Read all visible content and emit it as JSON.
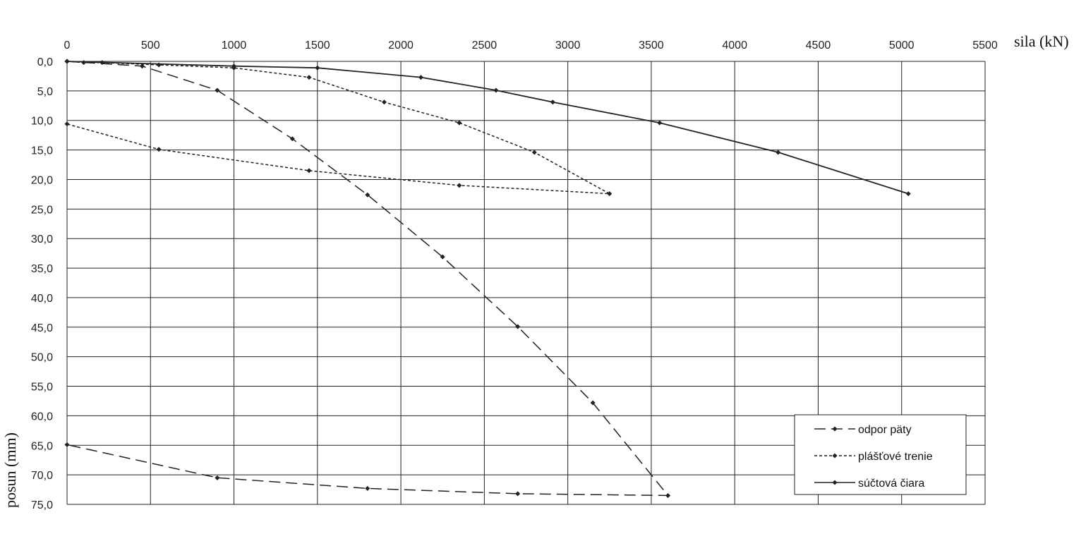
{
  "chart_data": {
    "type": "line",
    "xlabel": "sila (kN)",
    "ylabel": "posun (mm)",
    "xlim": [
      0,
      5500
    ],
    "ylim": [
      0,
      75
    ],
    "x_ticks": [
      0,
      500,
      1000,
      1500,
      2000,
      2500,
      3000,
      3500,
      4000,
      4500,
      5000,
      5500
    ],
    "x_tick_labels": [
      "0",
      "500",
      "1000",
      "1500",
      "2000",
      "2500",
      "3000",
      "3500",
      "4000",
      "4500",
      "5000",
      "5500"
    ],
    "y_ticks": [
      0,
      5,
      10,
      15,
      20,
      25,
      30,
      35,
      40,
      45,
      50,
      55,
      60,
      65,
      70,
      75
    ],
    "y_tick_labels": [
      "0,0",
      "5,0",
      "10,0",
      "15,0",
      "20,0",
      "25,0",
      "30,0",
      "35,0",
      "40,0",
      "45,0",
      "50,0",
      "55,0",
      "60,0",
      "65,0",
      "70,0",
      "75,0"
    ],
    "y_inverted": true,
    "x_axis_position": "top",
    "grid": true,
    "legend_position": "bottom-right",
    "series": [
      {
        "name": "odpor päty",
        "line_style": "dashed",
        "color": "#222222",
        "points": [
          [
            0,
            0.0
          ],
          [
            450,
            0.8
          ],
          [
            900,
            4.9
          ],
          [
            1350,
            13.1
          ],
          [
            1800,
            22.6
          ],
          [
            2250,
            33.1
          ],
          [
            2700,
            44.9
          ],
          [
            3150,
            57.8
          ],
          [
            3600,
            73.5
          ],
          [
            2700,
            73.2
          ],
          [
            1800,
            72.3
          ],
          [
            900,
            70.5
          ],
          [
            0,
            64.9
          ]
        ]
      },
      {
        "name": "plášťové trenie",
        "line_style": "dotted",
        "color": "#222222",
        "points": [
          [
            0,
            0.0
          ],
          [
            100,
            0.2
          ],
          [
            210,
            0.2
          ],
          [
            550,
            0.6
          ],
          [
            1000,
            1.1
          ],
          [
            1450,
            2.7
          ],
          [
            1900,
            6.9
          ],
          [
            2350,
            10.4
          ],
          [
            2800,
            15.4
          ],
          [
            3250,
            22.4
          ],
          [
            2350,
            21.0
          ],
          [
            1450,
            18.5
          ],
          [
            550,
            14.9
          ],
          [
            0,
            10.6
          ]
        ]
      },
      {
        "name": "súčtová čiara",
        "line_style": "solid",
        "color": "#222222",
        "points": [
          [
            0,
            0.0
          ],
          [
            1000,
            0.8
          ],
          [
            1500,
            1.1
          ],
          [
            2120,
            2.7
          ],
          [
            2570,
            4.9
          ],
          [
            2910,
            6.9
          ],
          [
            3550,
            10.4
          ],
          [
            4260,
            15.4
          ],
          [
            5040,
            22.4
          ]
        ]
      }
    ]
  }
}
